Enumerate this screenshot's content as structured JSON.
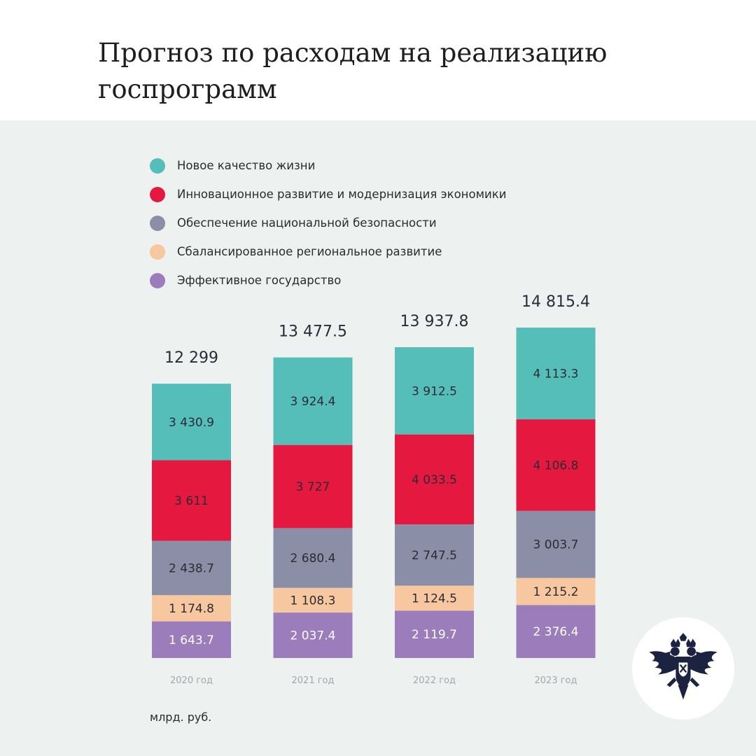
{
  "header": {
    "title": "Прогноз по расходам на реализацию госпрограмм"
  },
  "unit_label": "млрд. руб.",
  "colors": {
    "panel_bg": "#edf2f0",
    "quality_of_life": "#56beb9",
    "innovation": "#e5193f",
    "security": "#8b8ea7",
    "regional": "#f7c7a0",
    "government": "#9c7dbb"
  },
  "chart_data": {
    "type": "bar",
    "stacked": true,
    "title": "Прогноз по расходам на реализацию госпрограмм",
    "ylabel": "млрд. руб.",
    "categories": [
      "2020 год",
      "2021 год",
      "2022 год",
      "2023 год"
    ],
    "totals": [
      12299,
      13477.5,
      13937.8,
      14815.4
    ],
    "total_labels": [
      "12 299",
      "13 477.5",
      "13 937.8",
      "14 815.4"
    ],
    "series": [
      {
        "name": "Эффективное государство",
        "color": "#9c7dbb",
        "values": [
          1643.7,
          2037.4,
          2119.7,
          2376.4
        ],
        "labels": [
          "1 643.7",
          "2 037.4",
          "2 119.7",
          "2 376.4"
        ]
      },
      {
        "name": "Сбалансированное региональное развитие",
        "color": "#f7c7a0",
        "values": [
          1174.8,
          1108.3,
          1124.5,
          1215.2
        ],
        "labels": [
          "1 174.8",
          "1 108.3",
          "1 124.5",
          "1 215.2"
        ]
      },
      {
        "name": "Обеспечение национальной безопасности",
        "color": "#8b8ea7",
        "values": [
          2438.7,
          2680.4,
          2747.5,
          3003.7
        ],
        "labels": [
          "2 438.7",
          "2 680.4",
          "2 747.5",
          "3 003.7"
        ]
      },
      {
        "name": "Инновационное развитие и модернизация экономики",
        "color": "#e5193f",
        "values": [
          3611,
          3727,
          4033.5,
          4106.8
        ],
        "labels": [
          "3 611",
          "3 727",
          "4 033.5",
          "4 106.8"
        ]
      },
      {
        "name": "Новое качество жизни",
        "color": "#56beb9",
        "values": [
          3430.9,
          3924.4,
          3912.5,
          4113.3
        ],
        "labels": [
          "3 430.9",
          "3 924.4",
          "3 912.5",
          "4 113.3"
        ]
      }
    ],
    "legend": [
      {
        "label": "Новое качество жизни",
        "color": "#56beb9"
      },
      {
        "label": "Инновационное развитие и модернизация экономики",
        "color": "#e5193f"
      },
      {
        "label": "Обеспечение национальной безопасности",
        "color": "#8b8ea7"
      },
      {
        "label": "Сбалансированное региональное развитие",
        "color": "#f7c7a0"
      },
      {
        "label": "Эффективное государство",
        "color": "#9c7dbb"
      }
    ],
    "legend_position": "top-left"
  }
}
